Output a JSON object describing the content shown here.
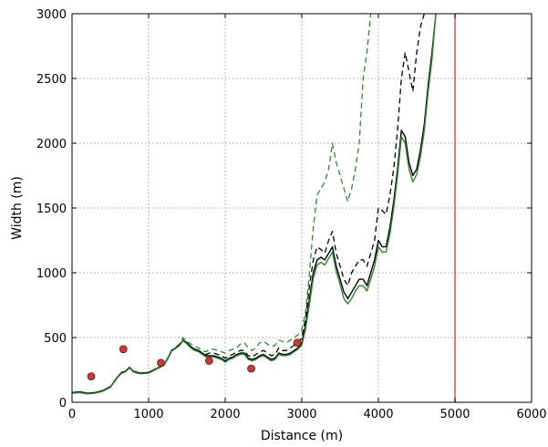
{
  "chart_data": {
    "type": "line",
    "title": "",
    "xlabel": "Distance (m)",
    "ylabel": "Width (m)",
    "xlim": [
      0,
      6000
    ],
    "ylim": [
      0,
      3000
    ],
    "xticks": [
      0,
      1000,
      2000,
      3000,
      4000,
      5000,
      6000
    ],
    "yticks": [
      0,
      500,
      1000,
      1500,
      2000,
      2500,
      3000
    ],
    "grid": true,
    "series": [
      {
        "style": "green-dashed",
        "color": "#2a8a2a",
        "x": [
          0,
          100,
          200,
          300,
          400,
          500,
          600,
          650,
          700,
          750,
          800,
          850,
          900,
          1000,
          1100,
          1200,
          1250,
          1300,
          1350,
          1400,
          1450,
          1500,
          1550,
          1600,
          1650,
          1700,
          1750,
          1800,
          1850,
          1900,
          1950,
          2000,
          2050,
          2100,
          2150,
          2200,
          2250,
          2300,
          2350,
          2400,
          2450,
          2500,
          2550,
          2600,
          2650,
          2700,
          2750,
          2800,
          2850,
          2900,
          2950,
          3000,
          3050,
          3100,
          3150,
          3200,
          3250,
          3300,
          3350,
          3400,
          3450,
          3500,
          3550,
          3600,
          3650,
          3700,
          3750,
          3800,
          3850,
          3900
        ],
        "y": [
          75,
          80,
          70,
          75,
          90,
          120,
          200,
          230,
          240,
          270,
          240,
          230,
          225,
          230,
          260,
          290,
          340,
          400,
          420,
          450,
          500,
          470,
          450,
          430,
          420,
          400,
          390,
          410,
          410,
          400,
          390,
          380,
          400,
          410,
          420,
          450,
          460,
          420,
          400,
          420,
          460,
          470,
          450,
          430,
          440,
          480,
          470,
          460,
          480,
          500,
          520,
          560,
          700,
          1000,
          1350,
          1600,
          1650,
          1700,
          1800,
          2000,
          1850,
          1750,
          1650,
          1550,
          1650,
          1800,
          2000,
          2500,
          2700,
          3000
        ]
      },
      {
        "style": "black-dashed",
        "color": "#000000",
        "x": [
          0,
          100,
          200,
          300,
          400,
          500,
          600,
          650,
          700,
          750,
          800,
          850,
          900,
          1000,
          1100,
          1200,
          1250,
          1300,
          1350,
          1400,
          1450,
          1500,
          1550,
          1600,
          1650,
          1700,
          1750,
          1800,
          1850,
          1900,
          1950,
          2000,
          2050,
          2100,
          2150,
          2200,
          2250,
          2300,
          2350,
          2400,
          2450,
          2500,
          2550,
          2600,
          2650,
          2700,
          2750,
          2800,
          2850,
          2900,
          2950,
          3000,
          3050,
          3100,
          3150,
          3200,
          3250,
          3300,
          3350,
          3400,
          3450,
          3500,
          3550,
          3600,
          3650,
          3700,
          3750,
          3800,
          3850,
          3900,
          3950,
          4000,
          4050,
          4100,
          4150,
          4200,
          4250,
          4300,
          4350,
          4400,
          4450,
          4500,
          4550,
          4600
        ],
        "y": [
          75,
          80,
          70,
          75,
          90,
          120,
          200,
          230,
          240,
          270,
          240,
          230,
          225,
          230,
          260,
          290,
          340,
          400,
          420,
          440,
          480,
          460,
          430,
          410,
          400,
          380,
          370,
          380,
          380,
          370,
          360,
          340,
          360,
          370,
          390,
          400,
          400,
          360,
          350,
          370,
          390,
          400,
          380,
          360,
          370,
          420,
          400,
          400,
          420,
          440,
          460,
          500,
          650,
          900,
          1100,
          1200,
          1180,
          1150,
          1250,
          1320,
          1150,
          1050,
          950,
          900,
          1000,
          1050,
          1100,
          1100,
          1050,
          1150,
          1250,
          1500,
          1480,
          1450,
          1600,
          1800,
          2100,
          2500,
          2700,
          2550,
          2400,
          2700,
          2900,
          3000
        ]
      },
      {
        "style": "black-solid",
        "color": "#000000",
        "x": [
          0,
          100,
          200,
          300,
          400,
          500,
          600,
          650,
          700,
          750,
          800,
          850,
          900,
          1000,
          1100,
          1200,
          1250,
          1300,
          1350,
          1400,
          1450,
          1500,
          1550,
          1600,
          1650,
          1700,
          1750,
          1800,
          1850,
          1900,
          1950,
          2000,
          2050,
          2100,
          2150,
          2200,
          2250,
          2300,
          2350,
          2400,
          2450,
          2500,
          2550,
          2600,
          2650,
          2700,
          2750,
          2800,
          2850,
          2900,
          2950,
          3000,
          3050,
          3100,
          3150,
          3200,
          3250,
          3300,
          3350,
          3400,
          3450,
          3500,
          3550,
          3600,
          3650,
          3700,
          3750,
          3800,
          3850,
          3900,
          3950,
          4000,
          4050,
          4100,
          4150,
          4200,
          4250,
          4300,
          4350,
          4400,
          4450,
          4500,
          4550,
          4600,
          4650,
          4700,
          4750
        ],
        "y": [
          75,
          80,
          70,
          75,
          90,
          120,
          200,
          230,
          240,
          270,
          240,
          230,
          225,
          230,
          260,
          290,
          340,
          400,
          420,
          440,
          480,
          460,
          430,
          410,
          400,
          380,
          360,
          360,
          360,
          350,
          340,
          320,
          340,
          350,
          370,
          380,
          380,
          340,
          330,
          340,
          360,
          370,
          350,
          330,
          340,
          380,
          370,
          370,
          380,
          400,
          420,
          460,
          600,
          800,
          1000,
          1100,
          1120,
          1100,
          1150,
          1200,
          1050,
          950,
          850,
          800,
          850,
          900,
          950,
          950,
          900,
          1000,
          1100,
          1250,
          1200,
          1200,
          1350,
          1550,
          1800,
          2100,
          2050,
          1850,
          1750,
          1800,
          1950,
          2150,
          2450,
          2700,
          3000
        ]
      },
      {
        "style": "green-solid",
        "color": "#2a8a2a",
        "x": [
          0,
          100,
          200,
          300,
          400,
          500,
          600,
          650,
          700,
          750,
          800,
          850,
          900,
          1000,
          1100,
          1200,
          1250,
          1300,
          1350,
          1400,
          1450,
          1500,
          1550,
          1600,
          1650,
          1700,
          1750,
          1800,
          1850,
          1900,
          1950,
          2000,
          2050,
          2100,
          2150,
          2200,
          2250,
          2300,
          2350,
          2400,
          2450,
          2500,
          2550,
          2600,
          2650,
          2700,
          2750,
          2800,
          2850,
          2900,
          2950,
          3000,
          3050,
          3100,
          3150,
          3200,
          3250,
          3300,
          3350,
          3400,
          3450,
          3500,
          3550,
          3600,
          3650,
          3700,
          3750,
          3800,
          3850,
          3900,
          3950,
          4000,
          4050,
          4100,
          4150,
          4200,
          4250,
          4300,
          4350,
          4400,
          4450,
          4500,
          4550,
          4600,
          4650,
          4700,
          4750
        ],
        "y": [
          70,
          75,
          65,
          70,
          85,
          115,
          195,
          225,
          235,
          265,
          235,
          225,
          220,
          225,
          255,
          285,
          335,
          395,
          415,
          435,
          475,
          450,
          420,
          400,
          390,
          370,
          350,
          350,
          350,
          340,
          330,
          310,
          330,
          340,
          360,
          370,
          370,
          330,
          320,
          330,
          350,
          360,
          340,
          320,
          330,
          370,
          360,
          360,
          370,
          390,
          410,
          440,
          570,
          760,
          960,
          1060,
          1080,
          1060,
          1110,
          1160,
          1010,
          910,
          800,
          760,
          800,
          860,
          900,
          900,
          860,
          950,
          1050,
          1200,
          1160,
          1160,
          1300,
          1500,
          1750,
          2050,
          2000,
          1800,
          1700,
          1760,
          1900,
          2100,
          2400,
          2650,
          3000
        ]
      }
    ],
    "scatter": {
      "color": "#e03030",
      "x": [
        250,
        670,
        1160,
        1790,
        2340,
        2940
      ],
      "y": [
        200,
        410,
        305,
        320,
        260,
        460
      ]
    },
    "vline": {
      "x": 5000,
      "color": "#e05050"
    }
  }
}
